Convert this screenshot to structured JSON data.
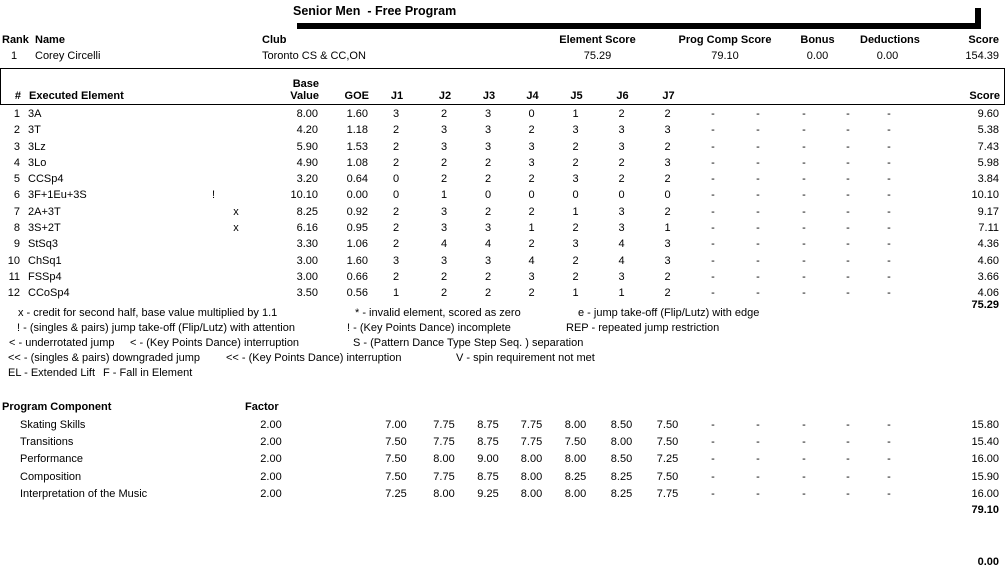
{
  "title": "Senior Men  - Free Program",
  "header": {
    "columns": {
      "rank": "Rank",
      "name": "Name",
      "club": "Club",
      "element_score": "Element Score",
      "prog_comp_score": "Prog Comp Score",
      "bonus": "Bonus",
      "deductions": "Deductions",
      "score": "Score"
    },
    "competitor": {
      "rank": "1",
      "name": "Corey Circelli",
      "club": "Toronto CS & CC,ON",
      "element_score": "75.29",
      "prog_comp_score": "79.10",
      "bonus": "0.00",
      "deductions": "0.00",
      "score": "154.39"
    }
  },
  "elements_table": {
    "headers": {
      "num": "#",
      "name": "Executed Element",
      "base_line1": "Base",
      "base_line2": "Value",
      "goe": "GOE",
      "judges": [
        "J1",
        "J2",
        "J3",
        "J4",
        "J5",
        "J6",
        "J7"
      ],
      "score": "Score"
    },
    "rows": [
      {
        "num": "1",
        "name": "3A",
        "info": "",
        "x": "",
        "base": "8.00",
        "goe": "1.60",
        "j": [
          "3",
          "2",
          "3",
          "0",
          "1",
          "2",
          "2",
          "-",
          "-",
          "-",
          "-",
          "-"
        ],
        "score": "9.60"
      },
      {
        "num": "2",
        "name": "3T",
        "info": "",
        "x": "",
        "base": "4.20",
        "goe": "1.18",
        "j": [
          "2",
          "3",
          "3",
          "2",
          "3",
          "3",
          "3",
          "-",
          "-",
          "-",
          "-",
          "-"
        ],
        "score": "5.38"
      },
      {
        "num": "3",
        "name": "3Lz",
        "info": "",
        "x": "",
        "base": "5.90",
        "goe": "1.53",
        "j": [
          "2",
          "3",
          "3",
          "3",
          "2",
          "3",
          "2",
          "-",
          "-",
          "-",
          "-",
          "-"
        ],
        "score": "7.43"
      },
      {
        "num": "4",
        "name": "3Lo",
        "info": "",
        "x": "",
        "base": "4.90",
        "goe": "1.08",
        "j": [
          "2",
          "2",
          "2",
          "3",
          "2",
          "2",
          "3",
          "-",
          "-",
          "-",
          "-",
          "-"
        ],
        "score": "5.98"
      },
      {
        "num": "5",
        "name": "CCSp4",
        "info": "",
        "x": "",
        "base": "3.20",
        "goe": "0.64",
        "j": [
          "0",
          "2",
          "2",
          "2",
          "3",
          "2",
          "2",
          "-",
          "-",
          "-",
          "-",
          "-"
        ],
        "score": "3.84"
      },
      {
        "num": "6",
        "name": "3F+1Eu+3S",
        "info": "!",
        "x": "",
        "base": "10.10",
        "goe": "0.00",
        "j": [
          "0",
          "1",
          "0",
          "0",
          "0",
          "0",
          "0",
          "-",
          "-",
          "-",
          "-",
          "-"
        ],
        "score": "10.10"
      },
      {
        "num": "7",
        "name": "2A+3T",
        "info": "",
        "x": "x",
        "base": "8.25",
        "goe": "0.92",
        "j": [
          "2",
          "3",
          "2",
          "2",
          "1",
          "3",
          "2",
          "-",
          "-",
          "-",
          "-",
          "-"
        ],
        "score": "9.17"
      },
      {
        "num": "8",
        "name": "3S+2T",
        "info": "",
        "x": "x",
        "base": "6.16",
        "goe": "0.95",
        "j": [
          "2",
          "3",
          "3",
          "1",
          "2",
          "3",
          "1",
          "-",
          "-",
          "-",
          "-",
          "-"
        ],
        "score": "7.11"
      },
      {
        "num": "9",
        "name": "StSq3",
        "info": "",
        "x": "",
        "base": "3.30",
        "goe": "1.06",
        "j": [
          "2",
          "4",
          "4",
          "2",
          "3",
          "4",
          "3",
          "-",
          "-",
          "-",
          "-",
          "-"
        ],
        "score": "4.36"
      },
      {
        "num": "10",
        "name": "ChSq1",
        "info": "",
        "x": "",
        "base": "3.00",
        "goe": "1.60",
        "j": [
          "3",
          "3",
          "3",
          "4",
          "2",
          "4",
          "3",
          "-",
          "-",
          "-",
          "-",
          "-"
        ],
        "score": "4.60"
      },
      {
        "num": "11",
        "name": "FSSp4",
        "info": "",
        "x": "",
        "base": "3.00",
        "goe": "0.66",
        "j": [
          "2",
          "2",
          "2",
          "3",
          "2",
          "3",
          "2",
          "-",
          "-",
          "-",
          "-",
          "-"
        ],
        "score": "3.66"
      },
      {
        "num": "12",
        "name": "CCoSp4",
        "info": "",
        "x": "",
        "base": "3.50",
        "goe": "0.56",
        "j": [
          "1",
          "2",
          "2",
          "2",
          "1",
          "1",
          "2",
          "-",
          "-",
          "-",
          "-",
          "-"
        ],
        "score": "4.06"
      }
    ],
    "total": "75.29"
  },
  "legend": {
    "lines": [
      [
        "x - credit for second half, base value multiplied by 1.1",
        "* - invalid element, scored as zero",
        "e - jump take-off (Flip/Lutz) with edge"
      ],
      [
        "! - (singles & pairs) jump take-off (Flip/Lutz) with attention",
        "! - (Key Points Dance) incomplete",
        "REP - repeated jump restriction"
      ],
      [
        "< - underrotated jump",
        "< - (Key Points Dance) interruption",
        "S - (Pattern Dance Type Step Seq. ) separation"
      ],
      [
        "<< - (singles & pairs) downgraded jump",
        "<< - (Key Points Dance) interruption",
        "V - spin requirement not met"
      ],
      [
        "EL - Extended Lift",
        "F - Fall in Element"
      ]
    ]
  },
  "components_table": {
    "header": {
      "label": "Program Component",
      "factor": "Factor"
    },
    "rows": [
      {
        "label": "Skating Skills",
        "factor": "2.00",
        "j": [
          "7.00",
          "7.75",
          "8.75",
          "7.75",
          "8.00",
          "8.50",
          "7.50",
          "-",
          "-",
          "-",
          "-",
          "-"
        ],
        "score": "15.80"
      },
      {
        "label": "Transitions",
        "factor": "2.00",
        "j": [
          "7.50",
          "7.75",
          "8.75",
          "7.75",
          "7.50",
          "8.00",
          "7.50",
          "-",
          "-",
          "-",
          "-",
          "-"
        ],
        "score": "15.40"
      },
      {
        "label": "Performance",
        "factor": "2.00",
        "j": [
          "7.50",
          "8.00",
          "9.00",
          "8.00",
          "8.00",
          "8.50",
          "7.25",
          "-",
          "-",
          "-",
          "-",
          "-"
        ],
        "score": "16.00"
      },
      {
        "label": "Composition",
        "factor": "2.00",
        "j": [
          "7.50",
          "7.75",
          "8.75",
          "8.00",
          "8.25",
          "8.25",
          "7.50",
          "-",
          "-",
          "-",
          "-",
          "-"
        ],
        "score": "15.90"
      },
      {
        "label": "Interpretation of the Music",
        "factor": "2.00",
        "j": [
          "7.25",
          "8.00",
          "9.25",
          "8.00",
          "8.00",
          "8.25",
          "7.75",
          "-",
          "-",
          "-",
          "-",
          "-"
        ],
        "score": "16.00"
      }
    ],
    "total": "79.10"
  },
  "deductions_total": "0.00"
}
